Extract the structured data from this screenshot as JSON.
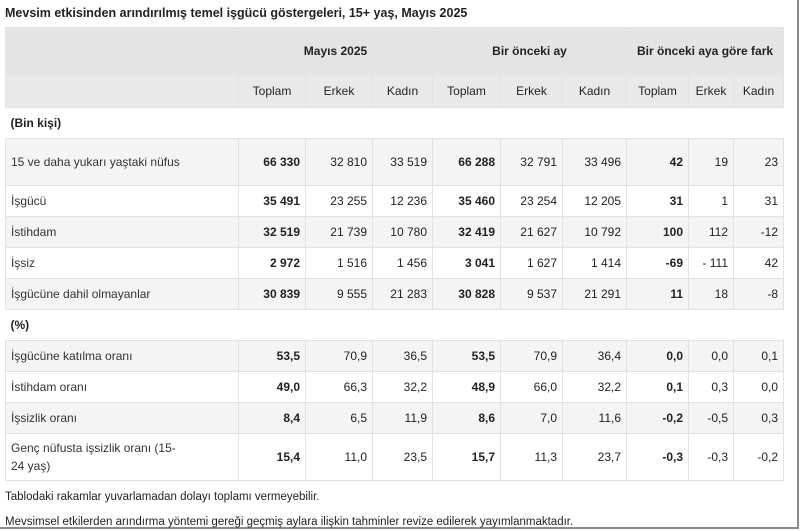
{
  "title": "Mevsim etkisinden arındırılmış temel işgücü göstergeleri, 15+ yaş, Mayıs 2025",
  "groups": [
    "Mayıs 2025",
    "Bir önceki ay",
    "Bir önceki aya göre fark"
  ],
  "subheaders": [
    "Toplam",
    "Erkek",
    "Kadın",
    "Toplam",
    "Erkek",
    "Kadın",
    "Toplam",
    "Erkek",
    "Kadın"
  ],
  "sections": [
    {
      "label": "(Bin kişi)",
      "rows": [
        {
          "label": "15 ve daha yukarı yaştaki nüfus",
          "values": [
            "66 330",
            "32 810",
            "33 519",
            "66 288",
            "32 791",
            "33 496",
            "42",
            "19",
            "23"
          ]
        },
        {
          "label": "İşgücü",
          "values": [
            "35 491",
            "23 255",
            "12 236",
            "35 460",
            "23 254",
            "12 205",
            "31",
            "1",
            "31"
          ]
        },
        {
          "label": "İstihdam",
          "values": [
            "32 519",
            "21 739",
            "10 780",
            "32 419",
            "21 627",
            "10 792",
            "100",
            "112",
            "-12"
          ]
        },
        {
          "label": "İşsiz",
          "values": [
            "2 972",
            "1 516",
            "1 456",
            "3 041",
            "1 627",
            "1 414",
            "-69",
            "- 111",
            "42"
          ]
        },
        {
          "label": "İşgücüne dahil olmayanlar",
          "values": [
            "30 839",
            "9 555",
            "21 283",
            "30 828",
            "9 537",
            "21 291",
            "11",
            "18",
            "-8"
          ]
        }
      ]
    },
    {
      "label": "(%)",
      "rows": [
        {
          "label": "İşgücüne katılma oranı",
          "values": [
            "53,5",
            "70,9",
            "36,5",
            "53,5",
            "70,9",
            "36,4",
            "0,0",
            "0,0",
            "0,1"
          ]
        },
        {
          "label": "İstihdam oranı",
          "values": [
            "49,0",
            "66,3",
            "32,2",
            "48,9",
            "66,0",
            "32,2",
            "0,1",
            "0,3",
            "0,0"
          ]
        },
        {
          "label": "İşsizlik oranı",
          "values": [
            "8,4",
            "6,5",
            "11,9",
            "8,6",
            "7,0",
            "11,6",
            "-0,2",
            "-0,5",
            "0,3"
          ]
        },
        {
          "label": "Genç nüfusta işsizlik oranı (15-24 yaş)",
          "values": [
            "15,4",
            "11,0",
            "23,5",
            "15,7",
            "11,3",
            "23,7",
            "-0,3",
            "-0,3",
            "-0,2"
          ]
        }
      ]
    }
  ],
  "notes": [
    "Tablodaki rakamlar yuvarlamadan dolayı toplamı vermeyebilir.",
    "Mevsimsel etkilerden arındırma yöntemi gereği geçmiş aylara ilişkin tahminler revize edilerek yayımlanmaktadır."
  ]
}
